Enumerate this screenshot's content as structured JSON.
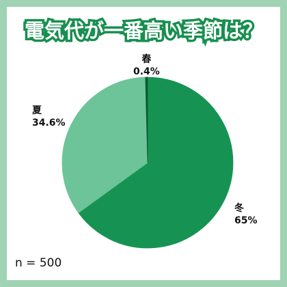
{
  "colors": {
    "frame": "#9fd3b3",
    "accent": "#188f4f",
    "slice_dark": "#169352",
    "slice_light": "#6cc498",
    "slice_line": "#0b5a2f"
  },
  "chart_data": {
    "type": "pie",
    "title": "電気代が一番高い季節は？",
    "slices": [
      {
        "name": "冬",
        "value": 65,
        "display": "65%"
      },
      {
        "name": "夏",
        "value": 34.6,
        "display": "34.6%"
      },
      {
        "name": "春",
        "value": 0.4,
        "display": "0.4%"
      }
    ],
    "note": "n = 500"
  }
}
